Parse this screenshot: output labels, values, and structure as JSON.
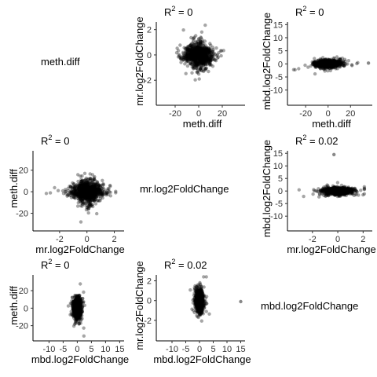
{
  "chart_data": {
    "type": "scatter_matrix",
    "variables": [
      "meth.diff",
      "mr.log2FoldChange",
      "mbd.log2FoldChange"
    ],
    "scales": {
      "meth.diff": {
        "ticks": [
          -20,
          0,
          20
        ],
        "tick_labels": [
          "-20",
          "0",
          "20"
        ],
        "range": [
          -32,
          38
        ]
      },
      "mr.log2FoldChange": {
        "ticks": [
          -2,
          0,
          2
        ],
        "tick_labels": [
          "-2",
          "0",
          "2"
        ],
        "range": [
          -3.6,
          2.6
        ]
      },
      "mbd.log2FoldChange": {
        "ticks": [
          -10,
          -5,
          0,
          5,
          10,
          15
        ],
        "tick_labels": [
          "-10",
          "-5",
          "0",
          "5",
          "10",
          "15"
        ],
        "range": [
          -14,
          16
        ]
      }
    },
    "panels": [
      {
        "row": 0,
        "col": 1,
        "x": "meth.diff",
        "y": "mr.log2FoldChange",
        "r2_label": "R",
        "r2_value": " = 0"
      },
      {
        "row": 0,
        "col": 2,
        "x": "meth.diff",
        "y": "mbd.log2FoldChange",
        "r2_label": "R",
        "r2_value": " = 0"
      },
      {
        "row": 1,
        "col": 0,
        "x": "mr.log2FoldChange",
        "y": "meth.diff",
        "r2_label": "R",
        "r2_value": " = 0"
      },
      {
        "row": 1,
        "col": 2,
        "x": "mr.log2FoldChange",
        "y": "mbd.log2FoldChange",
        "r2_label": "R",
        "r2_value": " = 0.02"
      },
      {
        "row": 2,
        "col": 0,
        "x": "mbd.log2FoldChange",
        "y": "meth.diff",
        "r2_label": "R",
        "r2_value": " = 0"
      },
      {
        "row": 2,
        "col": 1,
        "x": "mbd.log2FoldChange",
        "y": "mr.log2FoldChange",
        "r2_label": "R",
        "r2_value": " = 0.02"
      }
    ],
    "diagonal_labels": [
      "meth.diff",
      "mr.log2FoldChange",
      "mbd.log2FoldChange"
    ],
    "r2_superscript": "2",
    "point_color": "#000000",
    "point_opacity": 0.35,
    "grid": false,
    "legend": "none"
  }
}
